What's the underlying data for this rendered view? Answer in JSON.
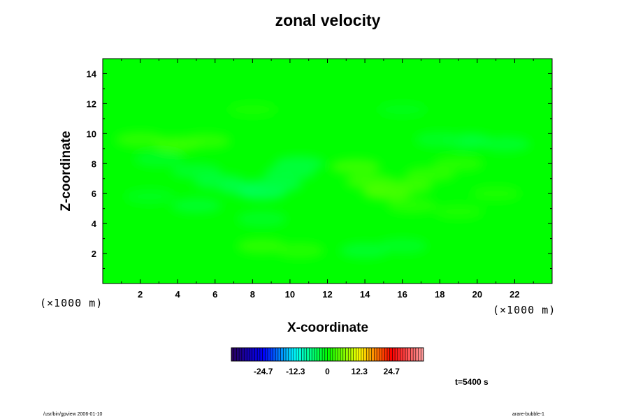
{
  "chart_data": {
    "type": "heatmap",
    "title": "zonal velocity",
    "xlabel": "X-coordinate",
    "ylabel": "Z-coordinate",
    "x_unit": "(×1000 m)",
    "x_unit_right": "(×1000 m)",
    "xlim": [
      0,
      24
    ],
    "ylim": [
      0,
      15
    ],
    "x_ticks": [
      2,
      4,
      6,
      8,
      10,
      12,
      14,
      16,
      18,
      20,
      22
    ],
    "y_ticks": [
      2,
      4,
      6,
      8,
      10,
      12,
      14
    ],
    "grid": false,
    "colorbar": {
      "tick_values": [
        -24.7,
        -12.3,
        0,
        12.3,
        24.7
      ],
      "tick_labels": [
        "-24.7",
        "-12.3",
        "0",
        "12.3",
        "24.7"
      ],
      "range": [
        -37,
        37
      ],
      "colormap": [
        "#2a005a",
        "#0000ff",
        "#00ffff",
        "#00ff00",
        "#ffff00",
        "#ff0000",
        "#ffa0a0"
      ]
    },
    "background_value": 0,
    "features": [
      {
        "x": 2,
        "z": 9.6,
        "value": 2.5
      },
      {
        "x": 4,
        "z": 9.3,
        "value": 3
      },
      {
        "x": 5.5,
        "z": 9.5,
        "value": 2.5
      },
      {
        "x": 3,
        "z": 8.3,
        "value": -2
      },
      {
        "x": 5,
        "z": 7.5,
        "value": -2.5
      },
      {
        "x": 6.2,
        "z": 6.8,
        "value": -3
      },
      {
        "x": 7.5,
        "z": 6.4,
        "value": -3.5
      },
      {
        "x": 8.5,
        "z": 6.1,
        "value": -4.5
      },
      {
        "x": 9.3,
        "z": 6.6,
        "value": -3.5
      },
      {
        "x": 10,
        "z": 7.4,
        "value": -3
      },
      {
        "x": 10.5,
        "z": 8,
        "value": -3
      },
      {
        "x": 5,
        "z": 5.2,
        "value": -2.5
      },
      {
        "x": 8.5,
        "z": 4.3,
        "value": -2
      },
      {
        "x": 2.5,
        "z": 5.8,
        "value": -1.5
      },
      {
        "x": 8.5,
        "z": 2.5,
        "value": 2.5
      },
      {
        "x": 10.5,
        "z": 2.2,
        "value": 2
      },
      {
        "x": 14,
        "z": 2.2,
        "value": -2.5
      },
      {
        "x": 16,
        "z": 2.5,
        "value": -2
      },
      {
        "x": 13.5,
        "z": 7.8,
        "value": 3
      },
      {
        "x": 14.3,
        "z": 6.8,
        "value": 3
      },
      {
        "x": 15.2,
        "z": 6.1,
        "value": 4
      },
      {
        "x": 16.3,
        "z": 6.5,
        "value": 3
      },
      {
        "x": 17.5,
        "z": 7.3,
        "value": 2.5
      },
      {
        "x": 19,
        "z": 8,
        "value": 2
      },
      {
        "x": 19.5,
        "z": 9.5,
        "value": -3
      },
      {
        "x": 21.5,
        "z": 9.3,
        "value": -2.5
      },
      {
        "x": 18,
        "z": 9.6,
        "value": -2
      },
      {
        "x": 16.5,
        "z": 5.2,
        "value": 2
      },
      {
        "x": 19,
        "z": 4.8,
        "value": 1.5
      },
      {
        "x": 21,
        "z": 6,
        "value": 1.5
      },
      {
        "x": 8,
        "z": 11.6,
        "value": 1.2
      },
      {
        "x": 16,
        "z": 11.6,
        "value": -1.2
      }
    ],
    "time_label": "t=5400 s"
  },
  "footer": {
    "left": "/usr/bin/gpview 2006-01-10",
    "right": "arare-bubble-1"
  }
}
